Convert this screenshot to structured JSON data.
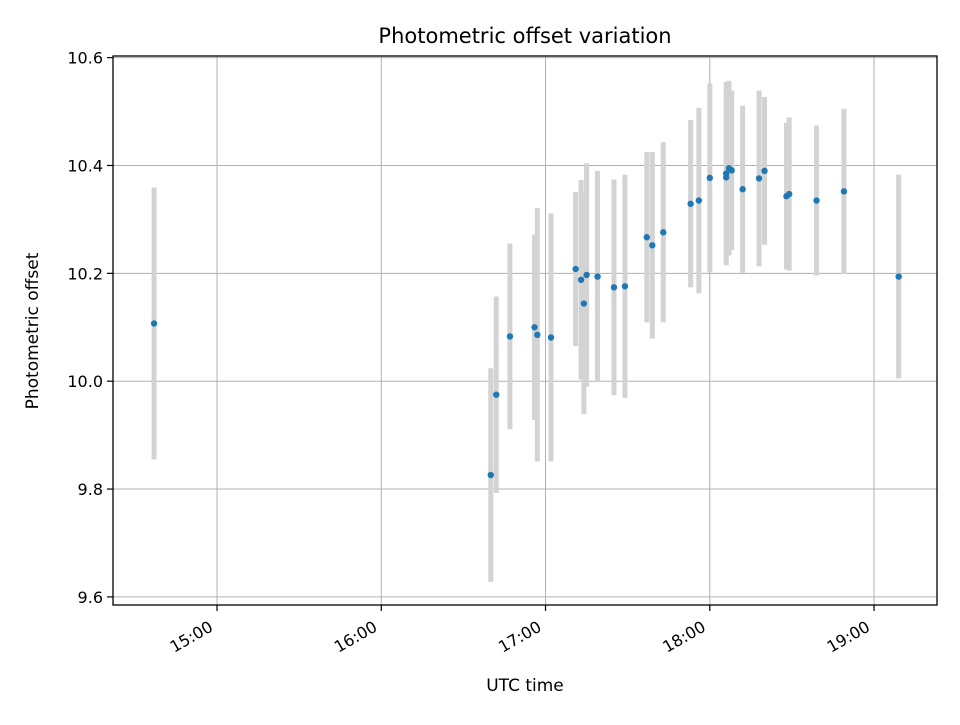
{
  "chart_data": {
    "type": "scatter",
    "title": "Photometric offset variation",
    "xlabel": "UTC time",
    "ylabel": "Photometric offset",
    "x_type": "time",
    "xlim": [
      "14:22",
      "19:23"
    ],
    "ylim": [
      9.585,
      10.603
    ],
    "xticks": [
      "15:00",
      "16:00",
      "17:00",
      "18:00",
      "19:00"
    ],
    "yticks": [
      "9.6",
      "9.8",
      "10.0",
      "10.2",
      "10.4",
      "10.6"
    ],
    "grid": true,
    "legend": "none",
    "point_color": "#1f77b4",
    "errorbar_color": "#d3d3d3",
    "points": [
      {
        "x": "14:37",
        "y": 10.107,
        "err": 0.252
      },
      {
        "x": "16:40",
        "y": 9.826,
        "err": 0.198
      },
      {
        "x": "16:42",
        "y": 9.975,
        "err": 0.182
      },
      {
        "x": "16:47",
        "y": 10.083,
        "err": 0.172
      },
      {
        "x": "16:56",
        "y": 10.1,
        "err": 0.172
      },
      {
        "x": "16:57",
        "y": 10.086,
        "err": 0.235
      },
      {
        "x": "17:02",
        "y": 10.081,
        "err": 0.23
      },
      {
        "x": "17:11",
        "y": 10.208,
        "err": 0.143
      },
      {
        "x": "17:13",
        "y": 10.188,
        "err": 0.185
      },
      {
        "x": "17:14",
        "y": 10.144,
        "err": 0.205
      },
      {
        "x": "17:15",
        "y": 10.197,
        "err": 0.207
      },
      {
        "x": "17:19",
        "y": 10.194,
        "err": 0.196
      },
      {
        "x": "17:25",
        "y": 10.174,
        "err": 0.2
      },
      {
        "x": "17:29",
        "y": 10.176,
        "err": 0.207
      },
      {
        "x": "17:37",
        "y": 10.267,
        "err": 0.158
      },
      {
        "x": "17:39",
        "y": 10.252,
        "err": 0.173
      },
      {
        "x": "17:43",
        "y": 10.276,
        "err": 0.167
      },
      {
        "x": "17:53",
        "y": 10.329,
        "err": 0.155
      },
      {
        "x": "17:56",
        "y": 10.335,
        "err": 0.172
      },
      {
        "x": "18:00",
        "y": 10.377,
        "err": 0.175
      },
      {
        "x": "18:06",
        "y": 10.378,
        "err": 0.155
      },
      {
        "x": "18:06",
        "y": 10.385,
        "err": 0.17
      },
      {
        "x": "18:07",
        "y": 10.395,
        "err": 0.162
      },
      {
        "x": "18:08",
        "y": 10.391,
        "err": 0.148
      },
      {
        "x": "18:12",
        "y": 10.356,
        "err": 0.155
      },
      {
        "x": "18:18",
        "y": 10.376,
        "err": 0.163
      },
      {
        "x": "18:20",
        "y": 10.39,
        "err": 0.137
      },
      {
        "x": "18:28",
        "y": 10.343,
        "err": 0.136
      },
      {
        "x": "18:29",
        "y": 10.347,
        "err": 0.142
      },
      {
        "x": "18:39",
        "y": 10.335,
        "err": 0.139
      },
      {
        "x": "18:49",
        "y": 10.352,
        "err": 0.153
      },
      {
        "x": "19:09",
        "y": 10.194,
        "err": 0.189
      }
    ]
  }
}
